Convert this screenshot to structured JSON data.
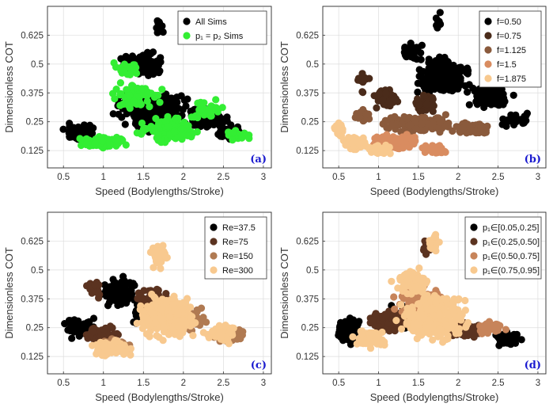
{
  "chart_data": [
    {
      "id": "a",
      "type": "scatter",
      "panel_label": "(a)",
      "xlabel": "Speed (Bodylengths/Stroke)",
      "ylabel": "Dimensionless COT",
      "xlim": [
        0.3,
        3.1
      ],
      "ylim": [
        0.05,
        0.75
      ],
      "xticks": [
        "0.5",
        "1",
        "1.5",
        "2",
        "2.5",
        "3"
      ],
      "yticks": [
        "0.125",
        "0.25",
        "0.375",
        "0.5",
        "0.625"
      ],
      "legend_position": "top-right",
      "series": [
        {
          "name": "All Sims",
          "color": "#000000"
        },
        {
          "name": "p₁ = p₂ Sims",
          "color": "#33ee33"
        }
      ]
    },
    {
      "id": "b",
      "type": "scatter",
      "panel_label": "(b)",
      "xlabel": "Speed (Bodylengths/Stroke)",
      "ylabel": "Dimensionless COT",
      "xlim": [
        0.3,
        3.1
      ],
      "ylim": [
        0.05,
        0.75
      ],
      "xticks": [
        "0.5",
        "1",
        "1.5",
        "2",
        "2.5",
        "3"
      ],
      "yticks": [
        "0.125",
        "0.25",
        "0.375",
        "0.5",
        "0.625"
      ],
      "legend_position": "top-right",
      "series": [
        {
          "name": "f=0.50",
          "color": "#000000"
        },
        {
          "name": "f=0.75",
          "color": "#4a2b1a"
        },
        {
          "name": "f=1.125",
          "color": "#8a5a3c"
        },
        {
          "name": "f=1.5",
          "color": "#d98c60"
        },
        {
          "name": "f=1.875",
          "color": "#f8c98f"
        }
      ]
    },
    {
      "id": "c",
      "type": "scatter",
      "panel_label": "(c)",
      "xlabel": "Speed (Bodylengths/Stroke)",
      "ylabel": "Dimensionless COT",
      "xlim": [
        0.3,
        3.1
      ],
      "ylim": [
        0.05,
        0.75
      ],
      "xticks": [
        "0.5",
        "1",
        "1.5",
        "2",
        "2.5",
        "3"
      ],
      "yticks": [
        "0.125",
        "0.25",
        "0.375",
        "0.5",
        "0.625"
      ],
      "legend_position": "top-right",
      "series": [
        {
          "name": "Re=37.5",
          "color": "#000000"
        },
        {
          "name": "Re=75",
          "color": "#5b3320"
        },
        {
          "name": "Re=150",
          "color": "#b07a52"
        },
        {
          "name": "Re=300",
          "color": "#f8c98f"
        }
      ]
    },
    {
      "id": "d",
      "type": "scatter",
      "panel_label": "(d)",
      "xlabel": "Speed (Bodylengths/Stroke)",
      "ylabel": "Dimensionless COT",
      "xlim": [
        0.3,
        3.1
      ],
      "ylim": [
        0.05,
        0.75
      ],
      "xticks": [
        "0.5",
        "1",
        "1.5",
        "2",
        "2.5",
        "3"
      ],
      "yticks": [
        "0.125",
        "0.25",
        "0.375",
        "0.5",
        "0.625"
      ],
      "legend_position": "top-right",
      "series": [
        {
          "name": "p₁∈[0.05,0.25]",
          "color": "#000000"
        },
        {
          "name": "p₁∈(0.25,0.50]",
          "color": "#5b3320"
        },
        {
          "name": "p₁∈(0.50,0.75]",
          "color": "#c7845a"
        },
        {
          "name": "p₁∈(0.75,0.95]",
          "color": "#f8c98f"
        }
      ]
    }
  ]
}
